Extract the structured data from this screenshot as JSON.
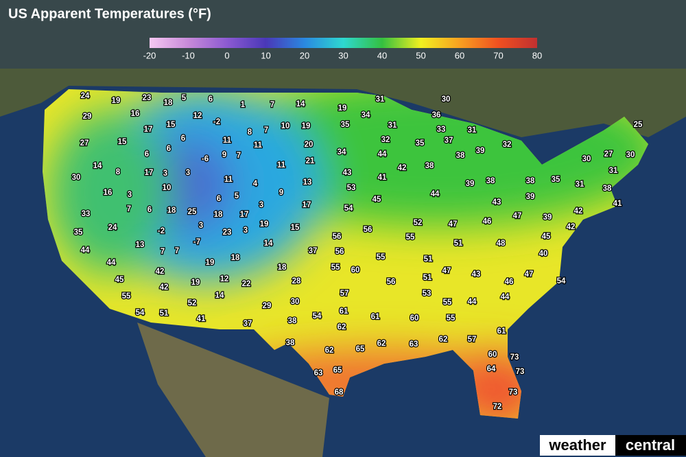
{
  "header": {
    "title": "US Apparent Temperatures (°F)"
  },
  "legend": {
    "ticks": [
      -20,
      -10,
      0,
      10,
      20,
      30,
      40,
      50,
      60,
      70,
      80
    ]
  },
  "map": {
    "readings": [
      24,
      19,
      23,
      18,
      5,
      6,
      1,
      7,
      14,
      19,
      31,
      30,
      29,
      16,
      12,
      -2,
      34,
      36,
      25,
      17,
      15,
      6,
      8,
      7,
      10,
      19,
      35,
      31,
      33,
      31,
      27,
      15,
      11,
      11,
      20,
      32,
      35,
      37,
      32,
      6,
      6,
      -6,
      9,
      7,
      34,
      44,
      39,
      38,
      27,
      30,
      30,
      14,
      8,
      17,
      3,
      3,
      11,
      21,
      43,
      41,
      42,
      38,
      31,
      30,
      10,
      11,
      4,
      9,
      13,
      53,
      39,
      38,
      38,
      35,
      31,
      38,
      16,
      3,
      6,
      5,
      45,
      44,
      39,
      43,
      3,
      17,
      54,
      41,
      33,
      7,
      6,
      18,
      25,
      18,
      17,
      19,
      42,
      47,
      39,
      46,
      52,
      47,
      24,
      -2,
      3,
      23,
      3,
      15,
      56,
      42,
      35,
      56,
      55,
      45,
      -7,
      14,
      48,
      51,
      13,
      44,
      37,
      56,
      7,
      7,
      18,
      55,
      40,
      51,
      44,
      19,
      18,
      55,
      60,
      42,
      47,
      43,
      47,
      54,
      45,
      12,
      22,
      42,
      19,
      28,
      56,
      51,
      46,
      57,
      55,
      14,
      53,
      30,
      55,
      44,
      44,
      52,
      29,
      61,
      54,
      51,
      41,
      54,
      61,
      60,
      55,
      38,
      37,
      62,
      61,
      38,
      62,
      63,
      62,
      57,
      62,
      65,
      60,
      73,
      65,
      63,
      64,
      73,
      68,
      73,
      72
    ]
  },
  "logo": {
    "left": "weather",
    "right": "central"
  }
}
